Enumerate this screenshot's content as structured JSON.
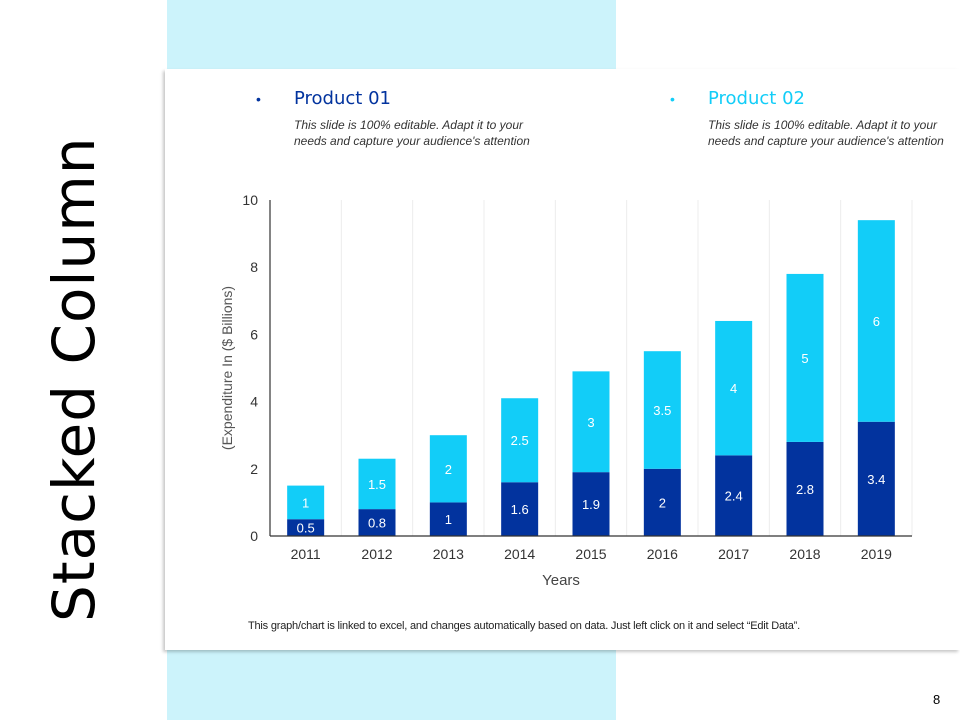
{
  "slide": {
    "title": "Stacked Column",
    "page_number": "8",
    "footnote": "This graph/chart is linked to excel, and changes automatically based on data. Just left click on it and select “Edit Data”.",
    "colors": {
      "band": "#ccf3fb",
      "product01": "#02339e",
      "product02": "#12cdf8"
    }
  },
  "legend": [
    {
      "bullet": "•",
      "title": "Product 01",
      "color": "#02339e",
      "description": "This slide is 100% editable. Adapt it to your needs and capture your audience's attention"
    },
    {
      "bullet": "•",
      "title": "Product 02",
      "color": "#12cdf8",
      "description": "This slide is 100% editable. Adapt it to your needs and capture your audience's attention"
    }
  ],
  "chart_data": {
    "type": "bar",
    "stacked": true,
    "title": "",
    "xlabel": "Years",
    "ylabel": "(Expenditure In ($ Billions)",
    "categories": [
      "2011",
      "2012",
      "2013",
      "2014",
      "2015",
      "2016",
      "2017",
      "2018",
      "2019"
    ],
    "series": [
      {
        "name": "Product 01",
        "color": "#02339e",
        "values": [
          0.5,
          0.8,
          1,
          1.6,
          1.9,
          2,
          2.4,
          2.8,
          3.4
        ]
      },
      {
        "name": "Product 02",
        "color": "#12cdf8",
        "values": [
          1,
          1.5,
          2,
          2.5,
          3,
          3.5,
          4,
          5,
          6
        ]
      }
    ],
    "ylim": [
      0,
      10
    ],
    "yticks": [
      0,
      2,
      4,
      6,
      8,
      10
    ],
    "grid": "vertical category separators",
    "data_labels": true,
    "legend": "top"
  }
}
